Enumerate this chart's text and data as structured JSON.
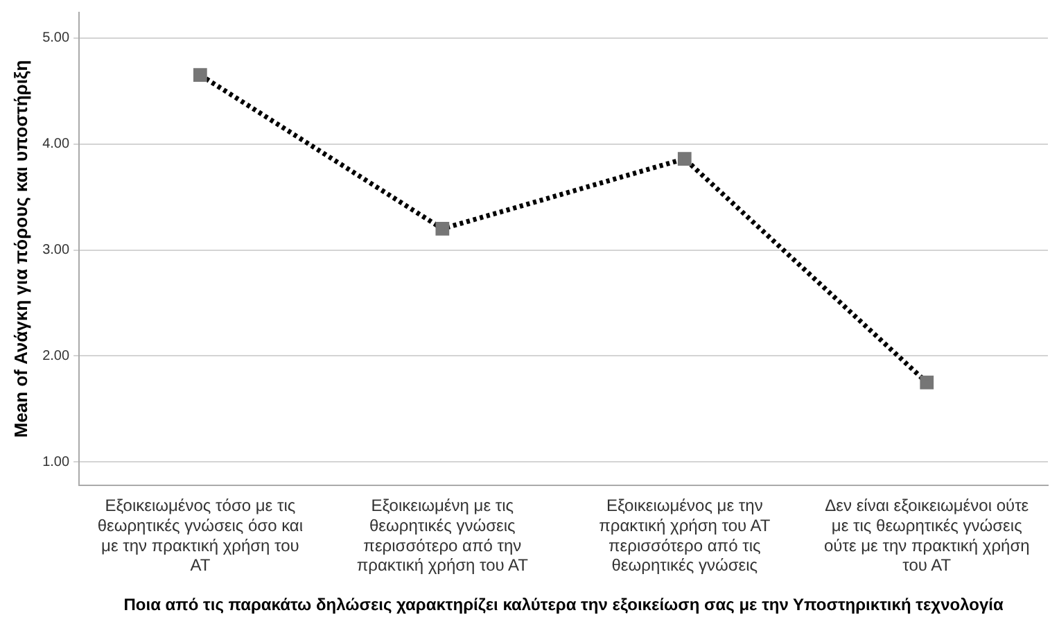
{
  "chart_data": {
    "type": "line",
    "categories": [
      "Εξοικειωμένος τόσο με τις θεωρητικές γνώσεις όσο και με την πρακτική χρήση του ΑΤ",
      "Εξοικειωμένη με τις θεωρητικές γνώσεις περισσότερο από την πρακτική χρήση του ΑΤ",
      "Εξοικειωμένος με την πρακτική χρήση του ΑΤ περισσότερο από τις θεωρητικές γνώσεις",
      "Δεν είναι εξοικειωμένοι ούτε με τις θεωρητικές γνώσεις ούτε με την πρακτική χρήση του ΑΤ"
    ],
    "series": [
      {
        "color": "#000000",
        "colors": [
          "#767676",
          "#767676",
          "#767676",
          "#767676"
        ],
        "values": [
          4.65,
          3.2,
          3.86,
          1.75
        ]
      }
    ],
    "xlabel": "Ποια από τις παρακάτω δηλώσεις χαρακτηρίζει καλύτερα την εξοικείωση σας με την Υποστηρικτική τεχνολογία",
    "ylabel": "Mean of Ανάγκη για πόρους και υποστήριξη",
    "ylim": [
      0.78,
      5.24
    ],
    "yticks": [
      {
        "value": 1,
        "label": "1.00"
      },
      {
        "value": 2,
        "label": "2.00"
      },
      {
        "value": 3,
        "label": "3.00"
      },
      {
        "value": 4,
        "label": "4.00"
      },
      {
        "value": 5,
        "label": "5.00"
      }
    ],
    "grid": "y",
    "legend": false,
    "marker": "square",
    "line_style": "dotted"
  }
}
